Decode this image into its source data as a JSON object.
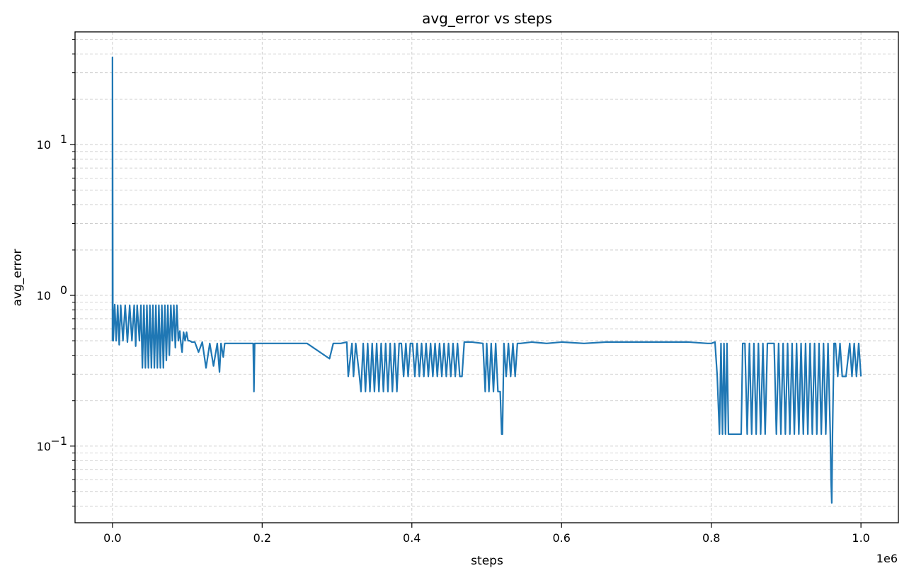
{
  "chart_data": {
    "type": "line",
    "title": "avg_error vs steps",
    "xlabel": "steps",
    "ylabel": "avg_error",
    "x_offset_label": "1e6",
    "xlim": [
      -50000,
      1050000
    ],
    "ylim": [
      0.031,
      56
    ],
    "yscale": "log",
    "grid": true,
    "xticks": [
      0,
      200000,
      400000,
      600000,
      800000,
      1000000
    ],
    "xtick_labels": [
      "0.0",
      "0.2",
      "0.4",
      "0.6",
      "0.8",
      "1.0"
    ],
    "yticks_major": [
      0.1,
      1,
      10
    ],
    "ytick_labels": [
      {
        "base": "10",
        "exp": "−1"
      },
      {
        "base": "10",
        "exp": "0"
      },
      {
        "base": "10",
        "exp": "1"
      }
    ],
    "color": "#1f77b4",
    "series": [
      {
        "x": [
          0,
          0,
          500,
          1000,
          3000,
          5000,
          7000,
          9000,
          11000,
          14000,
          17000,
          20000,
          23000,
          26000,
          29000,
          31000,
          33000,
          36000,
          38000,
          40000,
          42000,
          44000,
          46000,
          48000,
          50000,
          52000,
          54000,
          56000,
          58000,
          60000,
          62000,
          64000,
          66000,
          68000,
          70000,
          72000,
          74000,
          76000,
          78000,
          80000,
          82000,
          84000,
          86000,
          88000,
          90000,
          91000,
          93000,
          95000,
          97000,
          99000,
          101000,
          103000,
          106000,
          110000,
          115000,
          120000,
          125000,
          130000,
          135000,
          140000,
          143000,
          145000,
          148000,
          150000,
          170000,
          188000,
          189000,
          190000,
          200000,
          260000,
          290000,
          295000,
          305000,
          313000,
          315000,
          320000,
          322000,
          325000,
          330000,
          332000,
          335000,
          338000,
          341000,
          344000,
          347000,
          350000,
          353000,
          356000,
          359000,
          362000,
          365000,
          368000,
          371000,
          374000,
          377000,
          380000,
          383000,
          386000,
          389000,
          392000,
          395000,
          398000,
          401000,
          404000,
          407000,
          410000,
          413000,
          416000,
          419000,
          422000,
          425000,
          428000,
          431000,
          434000,
          437000,
          440000,
          443000,
          446000,
          449000,
          452000,
          455000,
          458000,
          461000,
          464000,
          467000,
          470000,
          480000,
          495000,
          498000,
          500000,
          503000,
          506000,
          509000,
          512000,
          515000,
          518000,
          520000,
          521000,
          523000,
          526000,
          529000,
          532000,
          535000,
          538000,
          541000,
          545000,
          560000,
          580000,
          600000,
          630000,
          660000,
          700000,
          750000,
          770000,
          795000,
          800000,
          805000,
          808000,
          811000,
          813000,
          815000,
          817000,
          819000,
          821000,
          823000,
          825000,
          840000,
          842000,
          845000,
          848000,
          851000,
          854000,
          857000,
          860000,
          863000,
          866000,
          869000,
          872000,
          875000,
          878000,
          881000,
          884000,
          887000,
          890000,
          893000,
          896000,
          899000,
          902000,
          905000,
          908000,
          911000,
          914000,
          917000,
          920000,
          923000,
          926000,
          929000,
          932000,
          935000,
          938000,
          941000,
          944000,
          947000,
          950000,
          953000,
          956000,
          959000,
          960000,
          961000,
          962000,
          964000,
          966000,
          969000,
          972000,
          975000,
          980000,
          985000,
          988000,
          991000,
          994000,
          997000,
          1000000
        ],
        "y": [
          0.5,
          38,
          0.88,
          0.5,
          0.87,
          0.5,
          0.86,
          0.47,
          0.86,
          0.5,
          0.86,
          0.49,
          0.86,
          0.5,
          0.86,
          0.46,
          0.86,
          0.5,
          0.86,
          0.33,
          0.86,
          0.33,
          0.86,
          0.33,
          0.86,
          0.33,
          0.86,
          0.33,
          0.86,
          0.33,
          0.86,
          0.33,
          0.86,
          0.33,
          0.86,
          0.37,
          0.86,
          0.4,
          0.86,
          0.5,
          0.86,
          0.45,
          0.86,
          0.5,
          0.58,
          0.5,
          0.42,
          0.57,
          0.5,
          0.57,
          0.5,
          0.5,
          0.49,
          0.49,
          0.42,
          0.49,
          0.33,
          0.48,
          0.34,
          0.48,
          0.31,
          0.48,
          0.39,
          0.48,
          0.48,
          0.48,
          0.23,
          0.48,
          0.48,
          0.48,
          0.38,
          0.48,
          0.48,
          0.49,
          0.29,
          0.48,
          0.29,
          0.48,
          0.29,
          0.23,
          0.48,
          0.23,
          0.48,
          0.23,
          0.48,
          0.23,
          0.48,
          0.23,
          0.48,
          0.23,
          0.48,
          0.23,
          0.48,
          0.23,
          0.48,
          0.23,
          0.48,
          0.48,
          0.29,
          0.48,
          0.29,
          0.48,
          0.48,
          0.29,
          0.48,
          0.29,
          0.48,
          0.29,
          0.48,
          0.29,
          0.48,
          0.29,
          0.48,
          0.29,
          0.48,
          0.29,
          0.48,
          0.29,
          0.48,
          0.29,
          0.48,
          0.29,
          0.48,
          0.29,
          0.29,
          0.49,
          0.49,
          0.48,
          0.23,
          0.48,
          0.23,
          0.48,
          0.23,
          0.48,
          0.23,
          0.23,
          0.12,
          0.12,
          0.48,
          0.29,
          0.48,
          0.29,
          0.48,
          0.29,
          0.48,
          0.48,
          0.49,
          0.48,
          0.49,
          0.48,
          0.49,
          0.49,
          0.49,
          0.49,
          0.48,
          0.48,
          0.49,
          0.29,
          0.12,
          0.48,
          0.12,
          0.48,
          0.12,
          0.48,
          0.12,
          0.12,
          0.12,
          0.48,
          0.48,
          0.12,
          0.48,
          0.12,
          0.48,
          0.12,
          0.48,
          0.12,
          0.48,
          0.12,
          0.48,
          0.48,
          0.48,
          0.48,
          0.12,
          0.48,
          0.12,
          0.48,
          0.12,
          0.48,
          0.12,
          0.48,
          0.12,
          0.48,
          0.12,
          0.48,
          0.12,
          0.48,
          0.12,
          0.48,
          0.12,
          0.48,
          0.12,
          0.48,
          0.12,
          0.48,
          0.12,
          0.48,
          0.12,
          0.06,
          0.042,
          0.12,
          0.48,
          0.48,
          0.29,
          0.48,
          0.29,
          0.29,
          0.48,
          0.29,
          0.48,
          0.29,
          0.48,
          0.29
        ]
      }
    ]
  }
}
